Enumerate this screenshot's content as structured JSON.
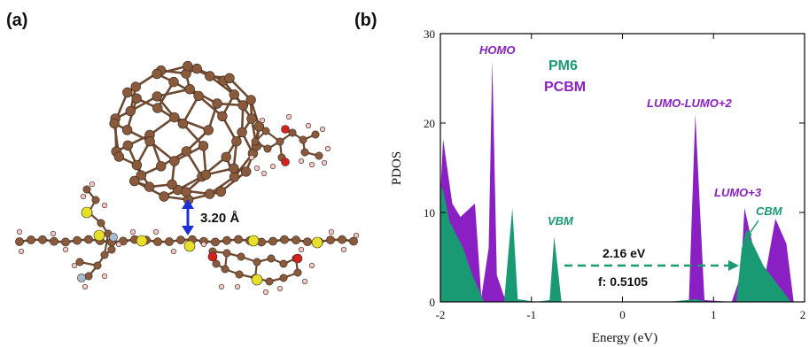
{
  "panel_a": {
    "label": "(a)",
    "distance_label": "3.20 Å",
    "colors": {
      "carbon": "#8a5a3c",
      "sulfur": "#e6e02a",
      "oxygen": "#d62020",
      "hydrogen": "#f2c8c8",
      "fluorine": "#a9bcd6",
      "arrow": "#1f2fd6"
    }
  },
  "panel_b": {
    "label": "(b)"
  },
  "chart_data": {
    "type": "area",
    "xlabel": "Energy (eV)",
    "ylabel": "PDOS",
    "xlim": [
      -2,
      2
    ],
    "ylim": [
      0,
      30
    ],
    "xticks": [
      "-2",
      "-1",
      "0",
      "1",
      "2"
    ],
    "yticks": [
      "0",
      "10",
      "20",
      "30"
    ],
    "legend": [
      {
        "name": "PM6",
        "color": "#1a9a72"
      },
      {
        "name": "PCBM",
        "color": "#8a1fc4"
      }
    ],
    "series": [
      {
        "name": "PCBM",
        "color": "#8a1fc4",
        "x": [
          -2.0,
          -1.97,
          -1.87,
          -1.78,
          -1.62,
          -1.55,
          -1.47,
          -1.43,
          -1.38,
          -1.3,
          -1.22,
          0.55,
          0.73,
          0.8,
          0.9,
          1.2,
          1.3,
          1.34,
          1.46,
          1.55,
          1.68,
          1.8,
          1.88
        ],
        "y": [
          12.0,
          18.2,
          11.0,
          9.5,
          11.0,
          0.5,
          6.0,
          27.0,
          3.0,
          0.6,
          0.0,
          0.0,
          0.2,
          21.0,
          0.2,
          0.0,
          3.0,
          10.5,
          5.0,
          2.0,
          9.3,
          6.5,
          0.0
        ]
      },
      {
        "name": "PM6",
        "color": "#1a9a72",
        "x": [
          -2.0,
          -1.97,
          -1.9,
          -1.75,
          -1.65,
          -1.52,
          -1.3,
          -1.21,
          -1.15,
          -0.95,
          -0.8,
          -0.75,
          -0.67,
          0.5,
          0.8,
          0.95,
          1.25,
          1.31,
          1.36,
          1.55,
          1.7,
          1.85
        ],
        "y": [
          13.0,
          12.5,
          9.0,
          6.0,
          3.0,
          0.0,
          0.0,
          10.5,
          0.3,
          0.0,
          0.2,
          7.3,
          0.0,
          0.0,
          0.3,
          0.0,
          0.0,
          6.0,
          8.0,
          4.0,
          2.0,
          0.0
        ]
      }
    ],
    "annotations": {
      "homo": "HOMO",
      "lumo_lumo2": "LUMO-LUMO+2",
      "lumo3": "LUMO+3",
      "vbm": "VBM",
      "cbm": "CBM",
      "gap": "2.16 eV",
      "f": "f: 0.5105"
    }
  }
}
